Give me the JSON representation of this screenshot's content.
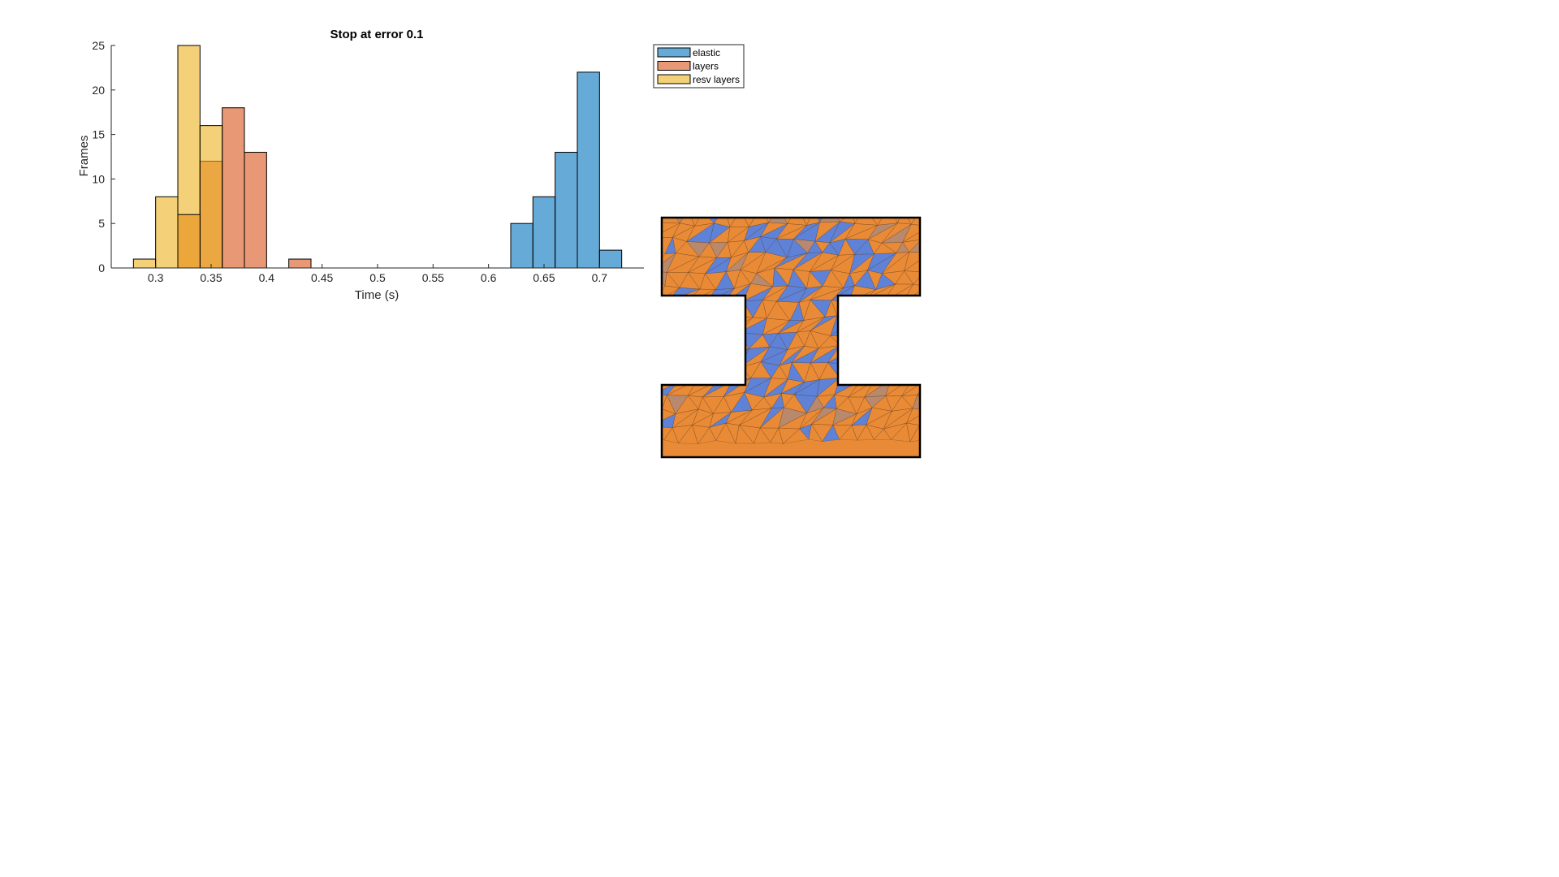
{
  "chart_data": {
    "type": "bar",
    "title": "Stop at error 0.1",
    "xlabel": "Time (s)",
    "ylabel": "Frames",
    "xlim": [
      0.26,
      0.74
    ],
    "ylim": [
      0,
      25
    ],
    "bin_width": 0.02,
    "xticks": [
      "0.3",
      "0.35",
      "0.4",
      "0.45",
      "0.5",
      "0.55",
      "0.6",
      "0.65",
      "0.7"
    ],
    "yticks": [
      "0",
      "5",
      "10",
      "15",
      "20",
      "25"
    ],
    "grid": false,
    "legend_position": "top-right-outside",
    "series": [
      {
        "name": "elastic",
        "color": "#0072BD",
        "face_alpha": 0.6,
        "bin_starts": [
          0.62,
          0.64,
          0.66,
          0.68,
          0.7
        ],
        "values": [
          5,
          8,
          13,
          22,
          2
        ]
      },
      {
        "name": "layers",
        "color": "#D95319",
        "face_alpha": 0.6,
        "bin_starts": [
          0.34,
          0.36,
          0.38,
          0.42
        ],
        "values": [
          12,
          18,
          13,
          1
        ]
      },
      {
        "name": "resv layers",
        "color": "#EDB120",
        "face_alpha": 0.6,
        "bin_starts": [
          0.28,
          0.3,
          0.32,
          0.34
        ],
        "values": [
          1,
          8,
          25,
          16
        ]
      }
    ],
    "overlap_bins": [
      {
        "bin_start": 0.32,
        "value": 6,
        "color": "#EBA73C"
      }
    ]
  },
  "mesh_colors": {
    "fill": "#E98A36",
    "accent": "#5E82D8",
    "mixed": "#B8896C",
    "edge": "#5a3a1f"
  }
}
